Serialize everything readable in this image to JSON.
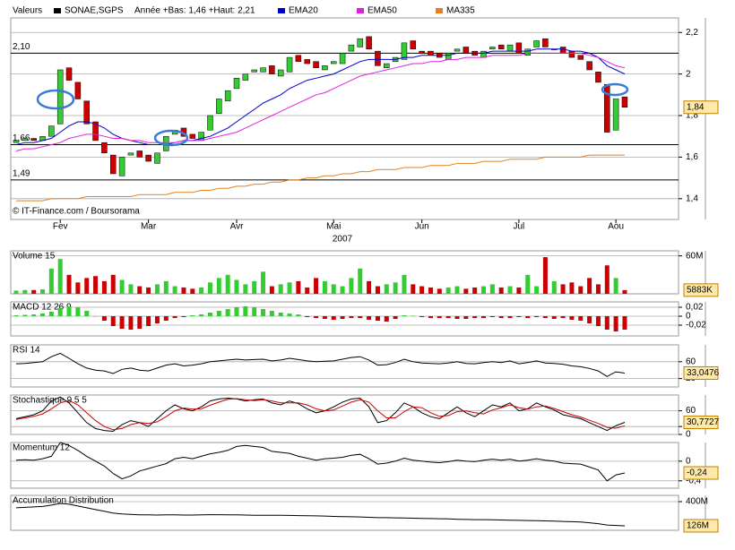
{
  "chart_data": [
    {
      "type": "candlestick",
      "title": "Valeurs",
      "subtitle": "Année +Bas: 1,46 +Haut: 2,21",
      "xlabel": "2007",
      "annotation": "© IT-Finance.com / Boursorama",
      "categories": [
        null,
        null,
        null,
        null,
        null,
        "Fev",
        null,
        null,
        null,
        null,
        null,
        null,
        null,
        null,
        null,
        "Mar",
        null,
        null,
        null,
        null,
        null,
        null,
        null,
        null,
        null,
        "Avr",
        null,
        null,
        null,
        null,
        null,
        null,
        null,
        null,
        null,
        null,
        "Mai",
        null,
        null,
        null,
        null,
        null,
        null,
        null,
        null,
        null,
        "Jun",
        null,
        null,
        null,
        null,
        null,
        null,
        null,
        null,
        null,
        null,
        "Jul",
        null,
        null,
        null,
        null,
        null,
        null,
        null,
        null,
        null,
        null,
        "Aou",
        null
      ],
      "series": [
        {
          "name": "SONAE,SGPS",
          "color": "#000000",
          "up_color": "#33cc33",
          "down_color": "#cc0000",
          "open": [
            1.67,
            1.68,
            1.69,
            1.68,
            1.7,
            1.76,
            2.03,
            1.96,
            1.87,
            1.77,
            1.67,
            1.61,
            1.51,
            1.61,
            1.63,
            1.61,
            1.57,
            1.63,
            1.71,
            1.74,
            1.71,
            1.68,
            1.73,
            1.81,
            1.87,
            1.93,
            1.97,
            2.01,
            2.01,
            2.04,
            1.99,
            2.01,
            2.09,
            2.07,
            2.06,
            2.02,
            2.05,
            2.05,
            2.11,
            2.13,
            2.18,
            2.11,
            2.03,
            2.06,
            2.07,
            2.16,
            2.11,
            2.11,
            2.1,
            2.07,
            2.11,
            2.13,
            2.11,
            2.08,
            2.12,
            2.14,
            2.11,
            2.15,
            2.09,
            2.13,
            2.17,
            2.12,
            2.13,
            2.11,
            2.09,
            2.06,
            2.01,
            1.95,
            1.73,
            1.89
          ],
          "close": [
            1.68,
            1.69,
            1.68,
            1.7,
            1.75,
            2.02,
            1.97,
            1.88,
            1.76,
            1.68,
            1.62,
            1.52,
            1.6,
            1.62,
            1.6,
            1.58,
            1.62,
            1.7,
            1.73,
            1.7,
            1.69,
            1.72,
            1.8,
            1.88,
            1.92,
            1.98,
            2.0,
            2.02,
            2.03,
            2.0,
            2.02,
            2.08,
            2.06,
            2.05,
            2.03,
            2.04,
            2.06,
            2.1,
            2.14,
            2.17,
            2.12,
            2.04,
            2.05,
            2.08,
            2.15,
            2.12,
            2.1,
            2.09,
            2.08,
            2.1,
            2.12,
            2.1,
            2.09,
            2.11,
            2.13,
            2.12,
            2.14,
            2.1,
            2.12,
            2.16,
            2.13,
            2.12,
            2.1,
            2.08,
            2.07,
            2.02,
            1.96,
            1.72,
            1.88,
            1.84
          ]
        },
        {
          "name": "EMA20",
          "color": "#0000cc",
          "values": [
            1.66,
            1.67,
            1.67,
            1.68,
            1.69,
            1.72,
            1.75,
            1.77,
            1.77,
            1.76,
            1.74,
            1.71,
            1.69,
            1.68,
            1.67,
            1.66,
            1.66,
            1.66,
            1.67,
            1.68,
            1.68,
            1.69,
            1.7,
            1.72,
            1.74,
            1.77,
            1.8,
            1.83,
            1.86,
            1.88,
            1.9,
            1.93,
            1.95,
            1.97,
            1.98,
            1.99,
            2.0,
            2.02,
            2.04,
            2.06,
            2.07,
            2.07,
            2.07,
            2.07,
            2.08,
            2.08,
            2.09,
            2.09,
            2.09,
            2.09,
            2.1,
            2.1,
            2.1,
            2.1,
            2.11,
            2.11,
            2.11,
            2.11,
            2.11,
            2.12,
            2.12,
            2.12,
            2.12,
            2.11,
            2.11,
            2.1,
            2.08,
            2.04,
            2.02,
            2.0
          ]
        },
        {
          "name": "EMA50",
          "color": "#e020e0",
          "values": [
            1.63,
            1.64,
            1.64,
            1.65,
            1.66,
            1.67,
            1.69,
            1.7,
            1.71,
            1.71,
            1.7,
            1.69,
            1.69,
            1.68,
            1.68,
            1.67,
            1.67,
            1.67,
            1.67,
            1.68,
            1.68,
            1.68,
            1.69,
            1.7,
            1.71,
            1.72,
            1.74,
            1.76,
            1.78,
            1.8,
            1.82,
            1.84,
            1.86,
            1.88,
            1.9,
            1.91,
            1.93,
            1.95,
            1.97,
            1.99,
            2.0,
            2.01,
            2.02,
            2.03,
            2.04,
            2.05,
            2.05,
            2.06,
            2.06,
            2.07,
            2.07,
            2.08,
            2.08,
            2.08,
            2.09,
            2.09,
            2.09,
            2.09,
            2.1,
            2.1,
            2.1,
            2.1,
            2.1,
            2.1,
            2.1,
            2.09,
            2.08,
            2.06,
            2.04,
            2.03
          ]
        },
        {
          "name": "MA335",
          "color": "#e08020",
          "values": [
            1.39,
            1.39,
            1.39,
            1.39,
            1.4,
            1.4,
            1.4,
            1.4,
            1.41,
            1.41,
            1.41,
            1.41,
            1.41,
            1.41,
            1.42,
            1.42,
            1.42,
            1.42,
            1.43,
            1.43,
            1.43,
            1.44,
            1.44,
            1.45,
            1.45,
            1.46,
            1.46,
            1.47,
            1.47,
            1.48,
            1.48,
            1.49,
            1.49,
            1.5,
            1.5,
            1.51,
            1.51,
            1.52,
            1.52,
            1.53,
            1.53,
            1.54,
            1.54,
            1.54,
            1.55,
            1.55,
            1.55,
            1.56,
            1.56,
            1.56,
            1.57,
            1.57,
            1.57,
            1.58,
            1.58,
            1.58,
            1.59,
            1.59,
            1.59,
            1.59,
            1.6,
            1.6,
            1.6,
            1.6,
            1.6,
            1.61,
            1.61,
            1.61,
            1.61,
            1.61
          ]
        }
      ],
      "ylim": [
        1.3,
        2.27
      ],
      "yticks": [
        {
          "value": 2.2,
          "label": "2,2"
        },
        2,
        {
          "value": 1.8,
          "label": "1,8"
        },
        {
          "value": 1.6,
          "label": "1,6"
        },
        {
          "value": 1.4,
          "label": "1,4"
        }
      ],
      "hlines": [
        {
          "value": 2.1,
          "label": "2,10"
        },
        {
          "value": 1.66,
          "label": "1,66"
        },
        {
          "value": 1.49,
          "label": "1,49"
        }
      ],
      "last_value_label": {
        "value": 1.84,
        "label": "1,84"
      }
    },
    {
      "type": "bar",
      "title": "Volume 15",
      "color": "#33cc33",
      "negative_color": "#cc0000",
      "values": [
        5,
        6,
        6,
        7,
        40,
        55,
        30,
        18,
        25,
        28,
        20,
        30,
        22,
        15,
        12,
        10,
        15,
        20,
        12,
        10,
        8,
        10,
        18,
        25,
        30,
        22,
        15,
        20,
        35,
        12,
        15,
        18,
        20,
        10,
        25,
        20,
        15,
        12,
        25,
        40,
        20,
        12,
        15,
        18,
        30,
        15,
        12,
        10,
        8,
        10,
        12,
        8,
        10,
        12,
        15,
        10,
        12,
        10,
        30,
        12,
        58,
        20,
        15,
        18,
        12,
        25,
        15,
        45,
        25,
        5.883
      ],
      "ylim": [
        0,
        68
      ],
      "yticks": [
        {
          "value": 60,
          "label": "60M"
        }
      ],
      "last_value_label": {
        "value": 5.883,
        "label": "5883K"
      }
    },
    {
      "type": "bar",
      "title": "MACD 12 26 9",
      "color": "#33cc33",
      "negative_color": "#cc0000",
      "values": [
        0.002,
        0.003,
        0.004,
        0.006,
        0.01,
        0.018,
        0.022,
        0.02,
        0.012,
        0.0,
        -0.01,
        -0.022,
        -0.028,
        -0.03,
        -0.028,
        -0.022,
        -0.016,
        -0.01,
        -0.004,
        -0.002,
        0.002,
        0.004,
        0.008,
        0.012,
        0.016,
        0.02,
        0.022,
        0.02,
        0.016,
        0.012,
        0.008,
        0.006,
        0.004,
        -0.002,
        -0.004,
        -0.006,
        -0.008,
        -0.006,
        -0.004,
        -0.004,
        -0.008,
        -0.01,
        -0.012,
        -0.006,
        0.002,
        0.001,
        -0.002,
        -0.004,
        -0.004,
        -0.004,
        -0.006,
        -0.006,
        -0.004,
        -0.004,
        -0.002,
        -0.004,
        -0.004,
        -0.002,
        -0.004,
        -0.002,
        -0.004,
        -0.006,
        -0.004,
        -0.008,
        -0.01,
        -0.016,
        -0.022,
        -0.03,
        -0.034,
        -0.03
      ],
      "ylim": [
        -0.044,
        0.032
      ],
      "yticks": [
        {
          "value": 0.02,
          "label": "0,02"
        },
        0,
        {
          "value": -0.02,
          "label": "-0,02"
        }
      ]
    },
    {
      "type": "line",
      "title": "RSI 14",
      "series": [
        {
          "color": "#000000",
          "values": [
            55,
            56,
            58,
            60,
            72,
            80,
            68,
            55,
            45,
            40,
            38,
            32,
            42,
            45,
            40,
            38,
            45,
            52,
            55,
            50,
            52,
            55,
            60,
            62,
            64,
            66,
            64,
            65,
            66,
            62,
            64,
            68,
            65,
            62,
            60,
            61,
            62,
            66,
            70,
            72,
            64,
            52,
            53,
            58,
            66,
            60,
            57,
            56,
            55,
            57,
            60,
            56,
            55,
            58,
            60,
            58,
            62,
            55,
            58,
            62,
            57,
            56,
            54,
            50,
            48,
            44,
            38,
            25,
            36,
            33.0476
          ]
        }
      ],
      "ylim": [
        0,
        100
      ],
      "yticks": [
        60,
        20
      ],
      "last_value_label": {
        "value": 33.0476,
        "label": "33,0476"
      }
    },
    {
      "type": "line",
      "title": "Stochastique 9 5 5",
      "series": [
        {
          "color": "#000000",
          "values": [
            40,
            45,
            50,
            60,
            85,
            95,
            80,
            55,
            30,
            15,
            10,
            8,
            25,
            35,
            30,
            20,
            40,
            60,
            75,
            65,
            60,
            70,
            85,
            90,
            92,
            90,
            85,
            88,
            90,
            80,
            75,
            85,
            78,
            65,
            55,
            60,
            70,
            82,
            90,
            92,
            70,
            30,
            35,
            55,
            80,
            70,
            55,
            45,
            40,
            55,
            70,
            55,
            45,
            60,
            75,
            70,
            80,
            60,
            65,
            80,
            70,
            62,
            50,
            45,
            40,
            30,
            20,
            10,
            22,
            30.7727
          ]
        },
        {
          "color": "#cc0000",
          "values": [
            38,
            42,
            46,
            52,
            65,
            80,
            86,
            75,
            55,
            35,
            20,
            12,
            15,
            25,
            30,
            28,
            32,
            45,
            60,
            67,
            64,
            65,
            74,
            82,
            89,
            91,
            88,
            86,
            88,
            85,
            80,
            80,
            80,
            75,
            65,
            60,
            62,
            72,
            82,
            88,
            82,
            60,
            42,
            42,
            58,
            70,
            68,
            55,
            46,
            48,
            58,
            60,
            55,
            52,
            62,
            68,
            75,
            68,
            64,
            70,
            72,
            66,
            58,
            50,
            44,
            36,
            28,
            18,
            16,
            22
          ]
        }
      ],
      "ylim": [
        0,
        100
      ],
      "yticks": [
        60,
        20,
        0
      ],
      "last_value_label": {
        "value": 30.7727,
        "label": "30,7727"
      }
    },
    {
      "type": "line",
      "title": "Momentum 12",
      "series": [
        {
          "color": "#000000",
          "values": [
            0.02,
            0.03,
            0.02,
            0.05,
            0.1,
            0.38,
            0.32,
            0.22,
            0.1,
            0.0,
            -0.1,
            -0.25,
            -0.36,
            -0.3,
            -0.2,
            -0.15,
            -0.1,
            -0.05,
            0.05,
            0.08,
            0.05,
            0.1,
            0.15,
            0.18,
            0.22,
            0.3,
            0.32,
            0.3,
            0.28,
            0.2,
            0.18,
            0.16,
            0.1,
            0.06,
            0.02,
            0.05,
            0.06,
            0.08,
            0.12,
            0.14,
            0.05,
            -0.06,
            -0.04,
            0.0,
            0.06,
            0.02,
            0.0,
            -0.02,
            -0.03,
            -0.01,
            0.02,
            0.0,
            -0.01,
            0.02,
            0.04,
            0.02,
            0.04,
            0.0,
            0.02,
            0.05,
            0.02,
            0.0,
            -0.04,
            -0.05,
            -0.06,
            -0.12,
            -0.18,
            -0.4,
            -0.28,
            -0.24
          ]
        }
      ],
      "ylim": [
        -0.55,
        0.38
      ],
      "yticks": [
        0,
        {
          "value": -0.4,
          "label": "-0,4"
        }
      ],
      "last_value_label": {
        "value": -0.24,
        "label": "-0,24"
      }
    },
    {
      "type": "line",
      "title": "Accumulation Distribution",
      "series": [
        {
          "color": "#000000",
          "values": [
            330,
            335,
            340,
            345,
            360,
            380,
            370,
            350,
            330,
            310,
            290,
            270,
            260,
            255,
            250,
            250,
            248,
            250,
            250,
            248,
            248,
            250,
            252,
            252,
            250,
            250,
            248,
            246,
            246,
            245,
            245,
            244,
            242,
            240,
            238,
            236,
            232,
            230,
            228,
            226,
            222,
            218,
            218,
            216,
            215,
            212,
            210,
            208,
            206,
            204,
            200,
            198,
            196,
            196,
            194,
            192,
            190,
            188,
            186,
            185,
            182,
            180,
            176,
            172,
            168,
            160,
            150,
            135,
            130,
            126
          ]
        }
      ],
      "ylim": [
        75,
        471
      ],
      "yticks": [
        {
          "value": 400,
          "label": "400M"
        }
      ],
      "last_value_label": {
        "value": 126,
        "label": "126M"
      }
    }
  ]
}
